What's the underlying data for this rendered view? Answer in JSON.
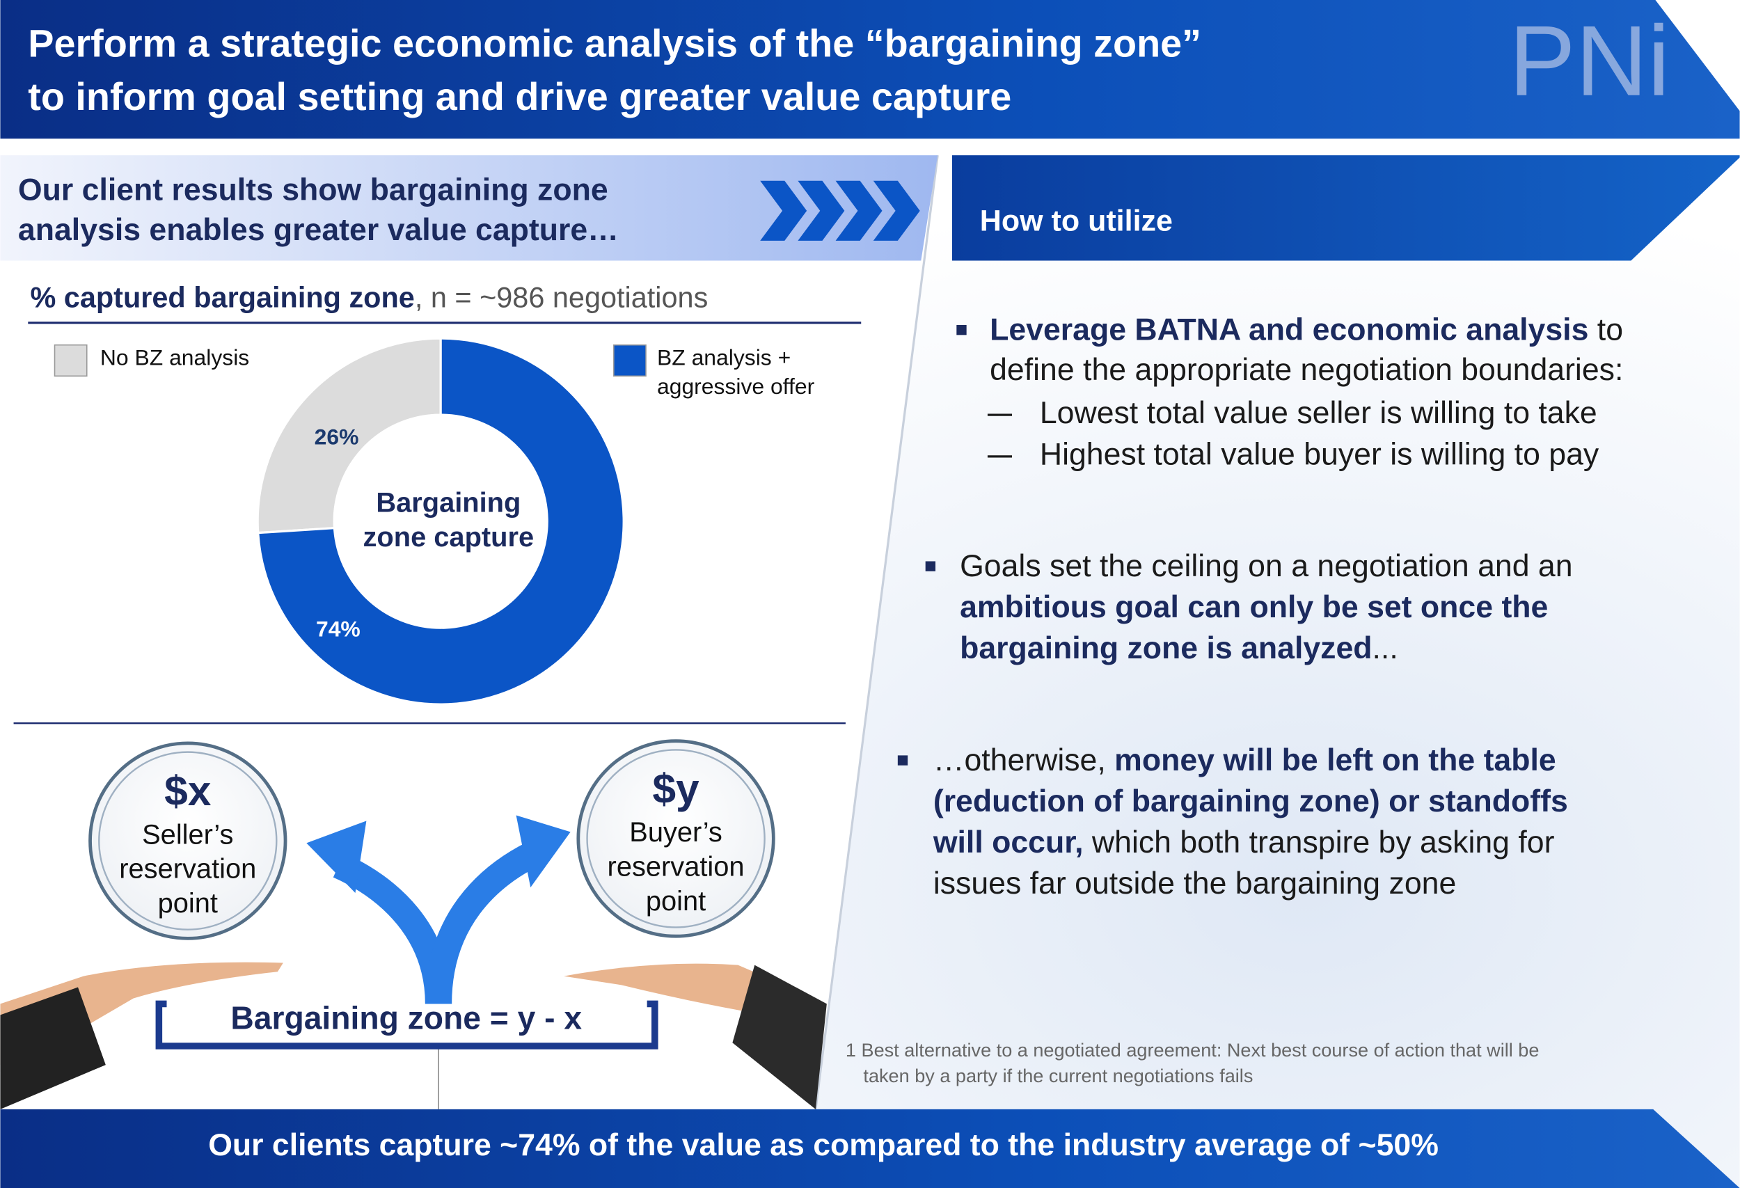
{
  "header": {
    "title_lines": [
      "Perform a strategic economic analysis of the “bargaining zone”",
      "to inform goal setting and drive greater value capture"
    ],
    "logo": "PNi"
  },
  "left_panel": {
    "heading_lines": [
      "Our client results show bargaining zone",
      "analysis enables greater value capture…"
    ]
  },
  "chart_data": {
    "type": "donut",
    "title": "% captured bargaining zone",
    "subtitle": ", n = ~986 negotiations",
    "categories": [
      "No BZ analysis",
      "BZ analysis + aggressive offer"
    ],
    "values": [
      26,
      74
    ],
    "value_labels": [
      "26%",
      "74%"
    ],
    "colors": [
      "#dcdcdc",
      "#0b55c6"
    ],
    "center_label": [
      "Bargaining",
      "zone capture"
    ]
  },
  "diagram": {
    "seller": {
      "symbol": "$x",
      "lines": [
        "Seller’s",
        "reservation",
        "point"
      ]
    },
    "buyer": {
      "symbol": "$y",
      "lines": [
        "Buyer’s",
        "reservation",
        "point"
      ]
    },
    "formula": "Bargaining zone = y - x"
  },
  "right_panel": {
    "heading": "How to utilize",
    "bullets": [
      {
        "lines": [
          [
            {
              "text": "Leverage BATNA and economic analysis",
              "bold": true
            },
            {
              "text": " to"
            }
          ],
          [
            {
              "text": "define the appropriate negotiation boundaries:"
            }
          ]
        ],
        "sub": [
          "Lowest total value seller is willing to take",
          "Highest total value buyer is willing to pay"
        ]
      },
      {
        "lines": [
          [
            {
              "text": "Goals set the ceiling on a negotiation and an"
            }
          ],
          [
            {
              "text": "ambitious goal can only be set once the",
              "bold": true
            }
          ],
          [
            {
              "text": "bargaining zone is analyzed",
              "bold": true
            },
            {
              "text": "..."
            }
          ]
        ]
      },
      {
        "lines": [
          [
            {
              "text": "…otherwise, "
            },
            {
              "text": "money will be left on the table",
              "bold": true
            }
          ],
          [
            {
              "text": "(reduction of bargaining zone) or standoffs",
              "bold": true
            }
          ],
          [
            {
              "text": "will occur,",
              "bold": true
            },
            {
              "text": " which both transpire by asking for"
            }
          ],
          [
            {
              "text": "issues far outside the bargaining zone"
            }
          ]
        ]
      }
    ]
  },
  "footnote_lines": [
    "1 Best alternative to a negotiated agreement: Next best course of action that will be",
    "taken by a party if the current negotiations fails"
  ],
  "footer": "Our clients capture ~74% of the value as compared to the industry average of ~50%"
}
